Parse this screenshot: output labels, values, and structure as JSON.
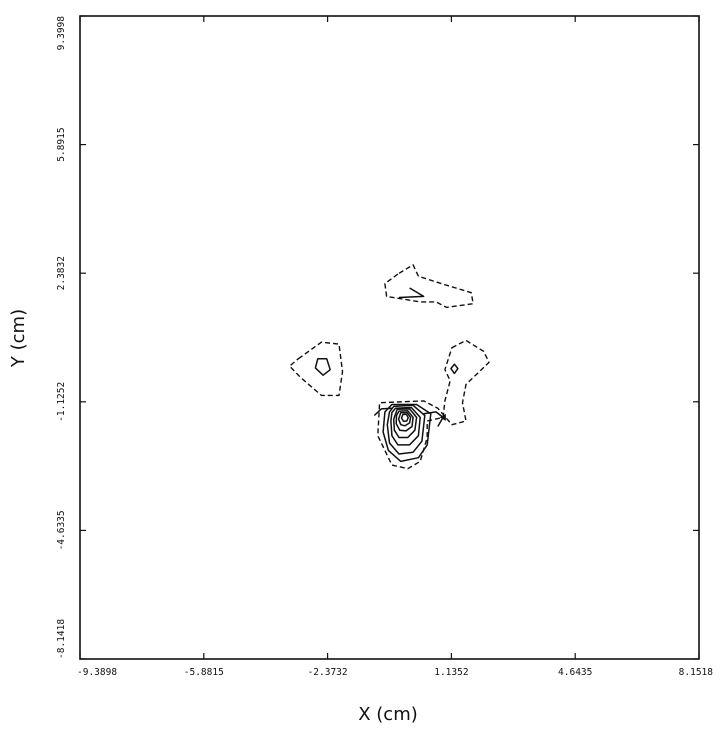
{
  "chart_data": {
    "type": "contour",
    "title": "",
    "xlabel": "X (cm)",
    "ylabel": "Y (cm)",
    "xlim": [
      -9.3898,
      8.1518
    ],
    "ylim": [
      -8.1418,
      9.3998
    ],
    "x_ticks": [
      "-9.3898",
      "-5.8815",
      "-2.3732",
      "1.1352",
      "4.6435",
      "8.1518"
    ],
    "y_ticks": [
      "-8.1418",
      "-4.6335",
      "-1.1252",
      "2.3832",
      "5.8915",
      "9.3998"
    ],
    "grid": false,
    "legend": "none",
    "contours": [
      {
        "style": "dashed",
        "points": [
          [
            -0.35,
            2.38
          ],
          [
            0.05,
            2.61
          ],
          [
            0.2,
            2.3
          ],
          [
            0.85,
            2.1
          ],
          [
            1.7,
            1.85
          ],
          [
            1.75,
            1.55
          ],
          [
            1.0,
            1.45
          ],
          [
            0.7,
            1.6
          ],
          [
            0.25,
            1.6
          ],
          [
            -0.7,
            1.75
          ],
          [
            -0.75,
            2.1
          ]
        ]
      },
      {
        "style": "solid",
        "points": [
          [
            -0.05,
            1.98
          ],
          [
            0.35,
            1.75
          ],
          [
            -0.35,
            1.72
          ]
        ]
      },
      {
        "style": "dashed",
        "points": [
          [
            -3.2,
            0.05
          ],
          [
            -2.55,
            0.5
          ],
          [
            -2.05,
            0.45
          ],
          [
            -1.95,
            -0.3
          ],
          [
            -2.05,
            -0.95
          ],
          [
            -2.55,
            -0.95
          ],
          [
            -3.15,
            -0.45
          ],
          [
            -3.45,
            -0.15
          ]
        ]
      },
      {
        "style": "solid",
        "points": [
          [
            -2.65,
            0.05
          ],
          [
            -2.4,
            0.05
          ],
          [
            -2.3,
            -0.25
          ],
          [
            -2.5,
            -0.4
          ],
          [
            -2.72,
            -0.2
          ]
        ]
      },
      {
        "style": "dashed",
        "points": [
          [
            1.15,
            0.35
          ],
          [
            1.55,
            0.55
          ],
          [
            2.05,
            0.25
          ],
          [
            2.2,
            -0.05
          ],
          [
            1.55,
            -0.65
          ],
          [
            1.45,
            -1.15
          ],
          [
            1.55,
            -1.65
          ],
          [
            1.15,
            -1.75
          ],
          [
            0.75,
            -1.3
          ],
          [
            0.35,
            -1.1
          ],
          [
            -0.9,
            -1.15
          ],
          [
            -0.95,
            -2.05
          ],
          [
            -0.55,
            -2.85
          ],
          [
            -0.1,
            -2.95
          ],
          [
            0.25,
            -2.75
          ],
          [
            0.45,
            -2.1
          ],
          [
            0.45,
            -1.65
          ],
          [
            0.9,
            -1.55
          ],
          [
            0.95,
            -1.1
          ],
          [
            1.1,
            -0.55
          ],
          [
            0.95,
            -0.25
          ]
        ]
      },
      {
        "style": "solid",
        "points": [
          [
            1.22,
            -0.1
          ],
          [
            1.32,
            -0.22
          ],
          [
            1.22,
            -0.35
          ],
          [
            1.12,
            -0.22
          ]
        ]
      },
      {
        "style": "solid",
        "points": [
          [
            -0.55,
            -1.2
          ],
          [
            0.15,
            -1.2
          ],
          [
            0.55,
            -1.45
          ],
          [
            0.45,
            -2.3
          ],
          [
            0.2,
            -2.65
          ],
          [
            -0.3,
            -2.75
          ],
          [
            -0.65,
            -2.45
          ],
          [
            -0.8,
            -1.95
          ],
          [
            -0.75,
            -1.4
          ]
        ]
      },
      {
        "style": "solid",
        "points": [
          [
            -0.5,
            -1.25
          ],
          [
            0.05,
            -1.22
          ],
          [
            0.38,
            -1.5
          ],
          [
            0.3,
            -2.2
          ],
          [
            0.05,
            -2.5
          ],
          [
            -0.35,
            -2.55
          ],
          [
            -0.62,
            -2.25
          ],
          [
            -0.68,
            -1.75
          ],
          [
            -0.62,
            -1.4
          ]
        ]
      },
      {
        "style": "solid",
        "points": [
          [
            -0.45,
            -1.3
          ],
          [
            0.0,
            -1.28
          ],
          [
            0.25,
            -1.55
          ],
          [
            0.2,
            -2.05
          ],
          [
            -0.05,
            -2.3
          ],
          [
            -0.38,
            -2.3
          ],
          [
            -0.55,
            -2.05
          ],
          [
            -0.58,
            -1.65
          ],
          [
            -0.55,
            -1.42
          ]
        ]
      },
      {
        "style": "solid",
        "points": [
          [
            -0.4,
            -1.33
          ],
          [
            -0.05,
            -1.32
          ],
          [
            0.15,
            -1.55
          ],
          [
            0.1,
            -1.9
          ],
          [
            -0.1,
            -2.1
          ],
          [
            -0.35,
            -2.1
          ],
          [
            -0.48,
            -1.9
          ],
          [
            -0.5,
            -1.6
          ]
        ]
      },
      {
        "style": "solid",
        "points": [
          [
            -0.35,
            -1.38
          ],
          [
            -0.1,
            -1.37
          ],
          [
            0.05,
            -1.55
          ],
          [
            0.02,
            -1.8
          ],
          [
            -0.15,
            -1.92
          ],
          [
            -0.33,
            -1.9
          ],
          [
            -0.43,
            -1.72
          ],
          [
            -0.42,
            -1.5
          ]
        ]
      },
      {
        "style": "solid",
        "points": [
          [
            -0.3,
            -1.42
          ],
          [
            -0.12,
            -1.42
          ],
          [
            -0.02,
            -1.55
          ],
          [
            -0.05,
            -1.7
          ],
          [
            -0.18,
            -1.78
          ],
          [
            -0.3,
            -1.75
          ],
          [
            -0.36,
            -1.6
          ]
        ]
      },
      {
        "style": "solid",
        "points": [
          [
            -0.24,
            -1.47
          ],
          [
            -0.14,
            -1.47
          ],
          [
            -0.09,
            -1.56
          ],
          [
            -0.13,
            -1.65
          ],
          [
            -0.22,
            -1.66
          ],
          [
            -0.28,
            -1.57
          ]
        ]
      },
      {
        "style": "solid",
        "points": [
          [
            -0.55,
            -1.3
          ],
          [
            -0.85,
            -1.32
          ],
          [
            -1.05,
            -1.5
          ]
        ]
      },
      {
        "style": "solid",
        "points": [
          [
            0.35,
            -1.45
          ],
          [
            0.7,
            -1.4
          ],
          [
            0.9,
            -1.55
          ],
          [
            0.75,
            -1.8
          ]
        ]
      }
    ],
    "markers": [
      {
        "shape": "triangle-left",
        "x": 0.95,
        "y": -1.55
      }
    ]
  }
}
